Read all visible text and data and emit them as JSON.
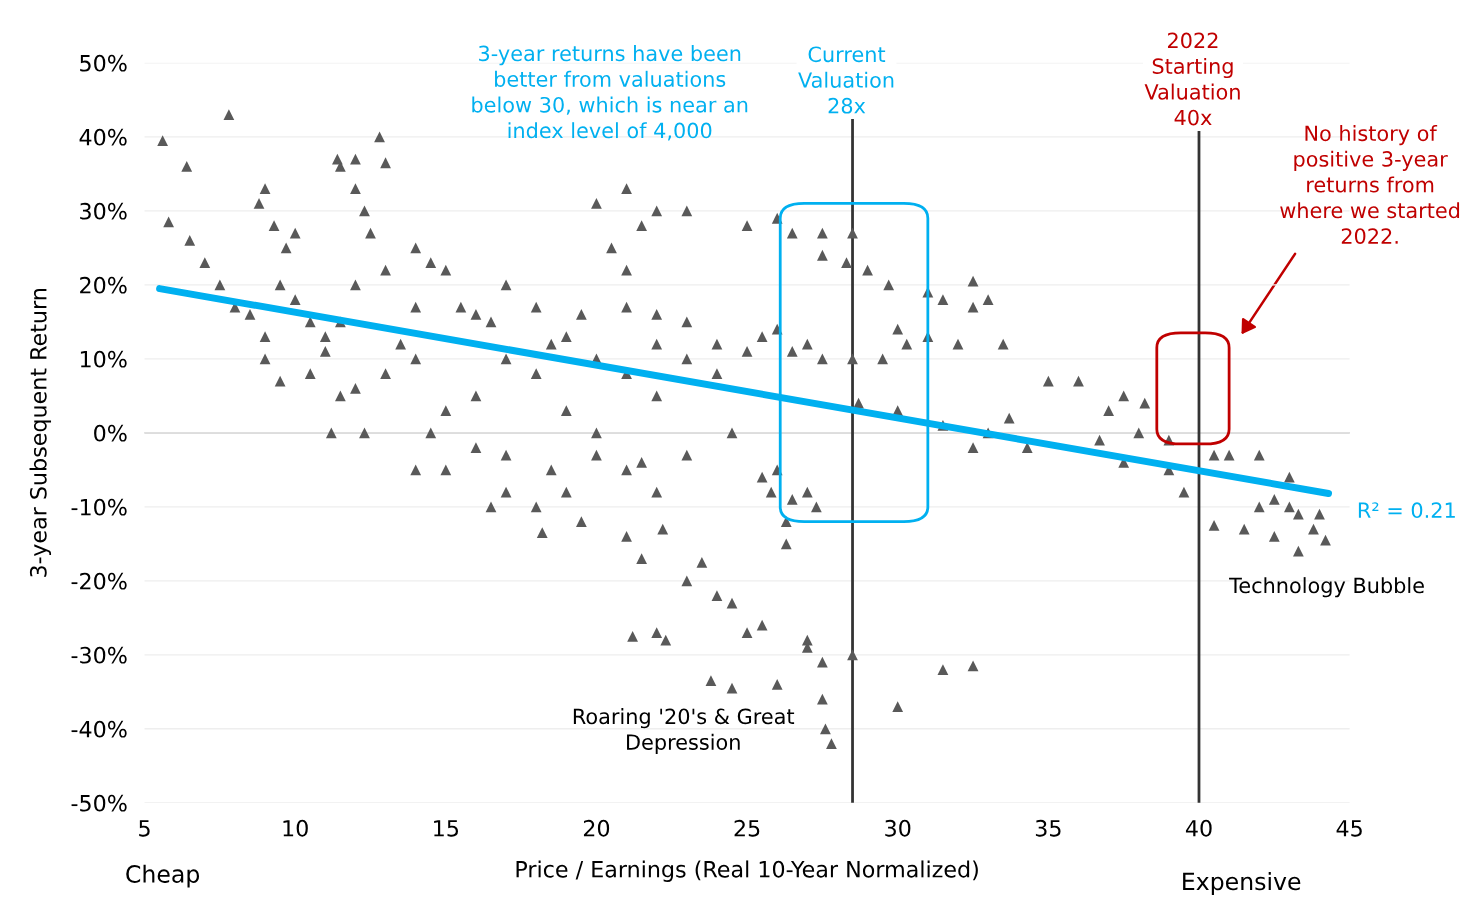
{
  "chart_data": {
    "type": "scatter",
    "xlabel": "Price / Earnings (Real 10-Year Normalized)",
    "ylabel": "3-year Subsequent Return",
    "xlim": [
      5,
      45
    ],
    "xticks": [
      5,
      10,
      15,
      20,
      25,
      30,
      35,
      40,
      45
    ],
    "ylim": [
      -50,
      50
    ],
    "yticks": [
      {
        "value": -50,
        "label": "-50%"
      },
      {
        "value": -40,
        "label": "-40%"
      },
      {
        "value": -30,
        "label": "-30%"
      },
      {
        "value": -20,
        "label": "-20%"
      },
      {
        "value": -10,
        "label": "-10%"
      },
      {
        "value": 0,
        "label": "0%"
      },
      {
        "value": 10,
        "label": "10%"
      },
      {
        "value": 20,
        "label": "20%"
      },
      {
        "value": 30,
        "label": "30%"
      },
      {
        "value": 40,
        "label": "40%"
      },
      {
        "value": 50,
        "label": "50%"
      }
    ],
    "grid": "y",
    "marker": "triangle",
    "series": [
      {
        "color": "#595959",
        "x": [
          5.6,
          6.4,
          7.8,
          5.8,
          6.5,
          7,
          7.5,
          8,
          8.5,
          8.8,
          9,
          9.3,
          9.5,
          9.7,
          10,
          10,
          10.5,
          11,
          9,
          9,
          9.5,
          10.5,
          11,
          11.5,
          12,
          11.4,
          12.3,
          12,
          12.5,
          12.8,
          13,
          13,
          12,
          11.5,
          11.5,
          12,
          11.2,
          12.3,
          13.5,
          13,
          14,
          14,
          14.5,
          14,
          15,
          15.5,
          16,
          16.5,
          17,
          15,
          14,
          15,
          14.5,
          16,
          17,
          16,
          17,
          18,
          18.5,
          18,
          19,
          19.5,
          20,
          21,
          21.5,
          22,
          23,
          20.5,
          21,
          21,
          22,
          23,
          20,
          21,
          22,
          19,
          20,
          18.5,
          19,
          18,
          17,
          16.5,
          18.2,
          19.5,
          20,
          21,
          21.5,
          22,
          23,
          21,
          21.5,
          22.2,
          23,
          23.5,
          24,
          24.5,
          25,
          25.5,
          26,
          21.2,
          22,
          22.3,
          23.8,
          24.5,
          27,
          27,
          27.5,
          27.5,
          27.6,
          27.8,
          28.5,
          30,
          31.5,
          32.5,
          22,
          23,
          24,
          24,
          25,
          24.5,
          25.5,
          26,
          25.8,
          26.5,
          27,
          27.3,
          26.3,
          26.3,
          25.5,
          26,
          26.5,
          27,
          27.5,
          25,
          26,
          26.5,
          27.5,
          28.5,
          29,
          28.3,
          27.5,
          29.7,
          30,
          30.3,
          28.5,
          29.5,
          28.7,
          30,
          31,
          31.5,
          32.5,
          33,
          32.5,
          33.5,
          32,
          31,
          31.5,
          32.5,
          33,
          33.7,
          34.3,
          35,
          36,
          36.7,
          37,
          37.5,
          38,
          37.5,
          38.2,
          39,
          39,
          39.5,
          40.5,
          41,
          42,
          40.5,
          41.5,
          42,
          42.5,
          42.5,
          43,
          43,
          43.3,
          43.8,
          44,
          44.2,
          43.3
        ],
        "values": [
          39.5,
          36,
          43,
          28.5,
          26,
          23,
          20,
          17,
          16,
          31,
          33,
          28,
          20,
          25,
          27,
          18,
          15,
          13,
          13,
          10,
          7,
          8,
          11,
          36,
          37,
          37,
          30,
          33,
          27,
          40,
          36.5,
          22,
          20,
          15,
          5,
          6,
          0,
          0,
          12,
          8,
          10,
          17,
          23,
          25,
          22,
          17,
          16,
          15,
          20,
          3,
          -5,
          -5,
          0,
          -2,
          -3,
          5,
          10,
          8,
          12,
          17,
          13,
          16,
          31,
          33,
          28,
          30,
          30,
          25,
          22,
          17,
          16,
          15,
          10,
          8,
          5,
          3,
          0,
          -5,
          -8,
          -10,
          -8,
          -10,
          -13.5,
          -12,
          -3,
          -5,
          -4,
          -8,
          -3,
          -14,
          -17,
          -13,
          -20,
          -17.5,
          -22,
          -23,
          -27,
          -26,
          -34,
          -27.5,
          -27,
          -28,
          -33.5,
          -34.5,
          -28,
          -29,
          -31,
          -36,
          -40,
          -42,
          -30,
          -37,
          -32,
          -31.5,
          12,
          10,
          12,
          8,
          11,
          0,
          -6,
          -5,
          -8,
          -9,
          -8,
          -10,
          -12,
          -15,
          13,
          14,
          11,
          12,
          10,
          28,
          29,
          27,
          27,
          27,
          22,
          23,
          24,
          20,
          14,
          12,
          10,
          10,
          4,
          3,
          19,
          18,
          17,
          18,
          20.5,
          12,
          12,
          13,
          1,
          -2,
          0,
          2,
          -2,
          7,
          7,
          -1,
          3,
          5,
          0,
          -4,
          4,
          -1,
          -5,
          -8,
          -3,
          -3,
          -3,
          -12.5,
          -13,
          -10,
          -9,
          -14,
          -10,
          -6,
          -11,
          -13,
          -11,
          -14.5,
          -16
        ]
      },
      {
        "type": "line",
        "marker": "none",
        "color": "#00b0f0",
        "x": [
          5.5,
          44.3
        ],
        "values": [
          19.5,
          -8.2
        ]
      }
    ],
    "ref_lines": [
      {
        "axis": "x",
        "value": 28.5,
        "label": "Current\nValuation\n28x",
        "color": "#333333"
      },
      {
        "axis": "x",
        "value": 40,
        "label": "2022\nStarting\nValuation\n40x",
        "color": "#333333"
      }
    ],
    "annotations": [
      "3-year returns have been\nbetter from valuations\nbelow 30, which is near an\nindex level of 4,000",
      "No history of\npositive 3-year\nreturns from\nwhere we started\n2022.",
      "R² = 0.21",
      "Technology Bubble",
      "Roaring '20's & Great\nDepression",
      "Cheap",
      "Expensive"
    ]
  }
}
